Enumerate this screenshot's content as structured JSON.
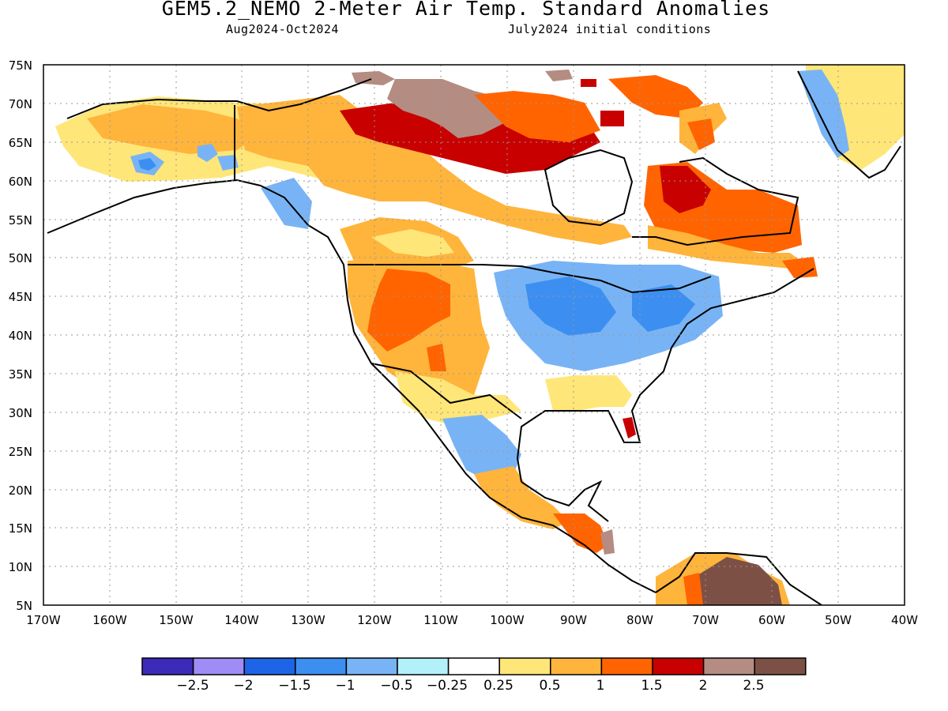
{
  "header": {
    "title": "GEM5.2_NEMO 2-Meter Air Temp. Standard Anomalies",
    "period": "Aug2024-Oct2024",
    "conditions": "July2024 initial conditions"
  },
  "map": {
    "lat_labels": [
      "75N",
      "70N",
      "65N",
      "60N",
      "55N",
      "50N",
      "45N",
      "40N",
      "35N",
      "30N",
      "25N",
      "20N",
      "15N",
      "10N",
      "5N"
    ],
    "lon_labels": [
      "170W",
      "160W",
      "150W",
      "140W",
      "130W",
      "120W",
      "110W",
      "100W",
      "90W",
      "80W",
      "70W",
      "60W",
      "50W",
      "40W"
    ],
    "lat_range": [
      5,
      75
    ],
    "lon_range": [
      -170,
      -40
    ],
    "grid": "dotted"
  },
  "colorbar": {
    "colors": [
      "#3b2bb8",
      "#a08cf5",
      "#1e64e6",
      "#3c8ff0",
      "#78b4f5",
      "#b4f0fa",
      "#ffffff",
      "#ffe678",
      "#ffb43c",
      "#ff6400",
      "#c80000",
      "#b48c82",
      "#7d5046"
    ],
    "labels": [
      "−2.5",
      "−2",
      "−1.5",
      "−1",
      "−0.5",
      "−0.25",
      "0.25",
      "0.5",
      "1",
      "1.5",
      "2",
      "2.5"
    ]
  },
  "regions": [
    {
      "name": "alaska-warm",
      "color": "#ffe678"
    },
    {
      "name": "alaska-interior-warm",
      "color": "#ffb43c"
    },
    {
      "name": "alaska-cool-1",
      "color": "#78b4f5"
    },
    {
      "name": "alaska-cool-2",
      "color": "#3c8ff0"
    },
    {
      "name": "yukon-warm",
      "color": "#ffb43c"
    },
    {
      "name": "bc-coast-cool",
      "color": "#3b2bb8"
    },
    {
      "name": "canada-prairies-warm",
      "color": "#ffb43c"
    },
    {
      "name": "hudson-region-hot",
      "color": "#c80000"
    },
    {
      "name": "arctic-islands-extreme",
      "color": "#b48c82"
    },
    {
      "name": "arctic-islands-hot",
      "color": "#ff6400"
    },
    {
      "name": "quebec-hot",
      "color": "#c80000"
    },
    {
      "name": "quebec-warm",
      "color": "#ff6400"
    },
    {
      "name": "labrador-warm",
      "color": "#ffb43c"
    },
    {
      "name": "us-west-warm",
      "color": "#ffb43c"
    },
    {
      "name": "us-west-hot",
      "color": "#ff6400"
    },
    {
      "name": "southwest-warm",
      "color": "#ffe678"
    },
    {
      "name": "midwest-cool",
      "color": "#78b4f5"
    },
    {
      "name": "great-lakes-cool",
      "color": "#3c8ff0"
    },
    {
      "name": "southeast-warm",
      "color": "#ffe678"
    },
    {
      "name": "florida-hot",
      "color": "#c80000"
    },
    {
      "name": "mexico-cool",
      "color": "#78b4f5"
    },
    {
      "name": "mexico-south-warm",
      "color": "#ffb43c"
    },
    {
      "name": "central-america-warm",
      "color": "#ff6400"
    },
    {
      "name": "south-america-extreme",
      "color": "#7d5046"
    },
    {
      "name": "greenland-warm",
      "color": "#ffe678"
    },
    {
      "name": "greenland-cool",
      "color": "#78b4f5"
    }
  ]
}
